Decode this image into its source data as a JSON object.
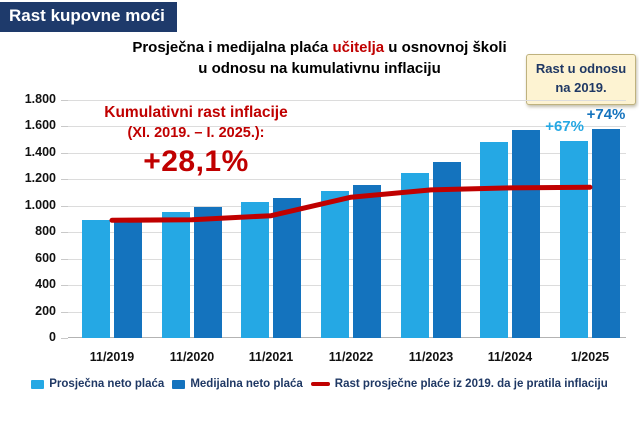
{
  "header": {
    "title": "Rast kupovne moći"
  },
  "chart_title": {
    "line1_pre": "Prosječna i medijalna plaća ",
    "line1_highlight": "učitelja",
    "line1_post": " u osnovnoj školi",
    "line2": "u odnosu na kumulativnu inflaciju"
  },
  "note_box": {
    "line1": "Rast u odnosu",
    "line2": "na 2019."
  },
  "inflation_annotation": {
    "line1": "Kumulativni rast inflacije",
    "line2": "(XI. 2019. – I. 2025.):",
    "value": "+28,1%"
  },
  "colors": {
    "light_blue": "#25a8e4",
    "dark_blue": "#1473be",
    "red": "#c00000",
    "navy": "#1f3864",
    "header_bg": "#1e3a6b",
    "note_bg": "#fdf3d2",
    "grid": "#dcdcdc"
  },
  "chart_data": {
    "type": "bar",
    "title": "Prosječna i medijalna plaća učitelja u osnovnoj školi u odnosu na kumulativnu inflaciju",
    "categories": [
      "11/2019",
      "11/2020",
      "11/2021",
      "11/2022",
      "11/2023",
      "11/2024",
      "1/2025"
    ],
    "series": [
      {
        "name": "Prosječna neto plaća",
        "type": "bar",
        "color": "#25a8e4",
        "values": [
          890,
          950,
          1030,
          1110,
          1250,
          1480,
          1490
        ]
      },
      {
        "name": "Medijalna neto plaća",
        "type": "bar",
        "color": "#1473be",
        "values": [
          910,
          990,
          1060,
          1160,
          1330,
          1570,
          1580
        ]
      },
      {
        "name": "Rast prosječne plaće iz 2019. da je pratila inflaciju",
        "type": "line",
        "color": "#c00000",
        "values": [
          890,
          895,
          925,
          1065,
          1120,
          1135,
          1140
        ]
      }
    ],
    "ylim": [
      0,
      1800
    ],
    "ytick_step": 200,
    "ytick_labels": [
      "0",
      "200",
      "400",
      "600",
      "800",
      "1.000",
      "1.200",
      "1.400",
      "1.600",
      "1.800"
    ],
    "grid": true,
    "legend_position": "bottom",
    "point_labels": [
      {
        "series": 0,
        "category": "1/2025",
        "text": "+67%"
      },
      {
        "series": 1,
        "category": "1/2025",
        "text": "+74%"
      }
    ]
  }
}
